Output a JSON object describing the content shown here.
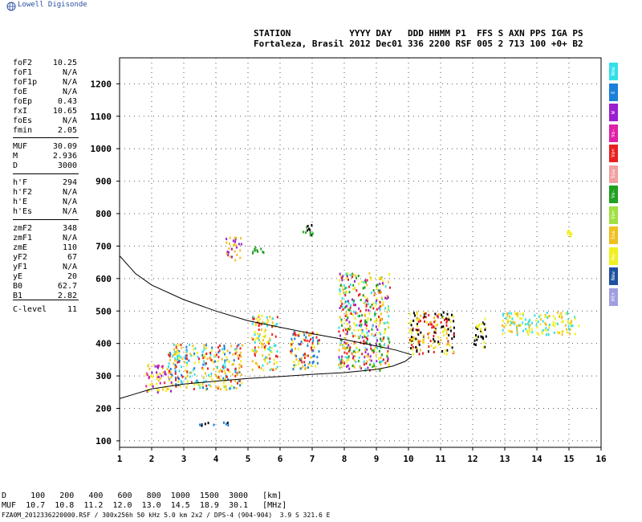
{
  "app": {
    "logo_text": "Lowell Digisonde"
  },
  "header": {
    "line1": "STATION           YYYY DAY   DDD HHMM P1  FFS S AXN PPS IGA PS",
    "line2": "Fortaleza, Brasil 2012 Dec01 336 2200 RSF 005 2 713 100 +0+ B2"
  },
  "params": [
    {
      "k": "foF2",
      "v": "10.25"
    },
    {
      "k": "foF1",
      "v": "N/A"
    },
    {
      "k": "foF1p",
      "v": "N/A"
    },
    {
      "k": "foE",
      "v": "N/A"
    },
    {
      "k": "foEp",
      "v": "0.43"
    },
    {
      "k": "fxI",
      "v": "10.65"
    },
    {
      "k": "foEs",
      "v": "N/A"
    },
    {
      "k": "fmin",
      "v": "2.05"
    },
    {
      "k": "MUF",
      "v": "30.09"
    },
    {
      "k": "M",
      "v": "2.936"
    },
    {
      "k": "D",
      "v": "3000"
    },
    {
      "k": "h'F",
      "v": "294"
    },
    {
      "k": "h'F2",
      "v": "N/A"
    },
    {
      "k": "h'E",
      "v": "N/A"
    },
    {
      "k": "h'Es",
      "v": "N/A"
    },
    {
      "k": "zmF2",
      "v": "348"
    },
    {
      "k": "zmF1",
      "v": "N/A"
    },
    {
      "k": "zmE",
      "v": "110"
    },
    {
      "k": "yF2",
      "v": "67"
    },
    {
      "k": "yF1",
      "v": "N/A"
    },
    {
      "k": "yE",
      "v": "20"
    },
    {
      "k": "B0",
      "v": "62.7"
    },
    {
      "k": "B1",
      "v": "2.82"
    },
    {
      "k": "C-level",
      "v": "11"
    }
  ],
  "legend": [
    {
      "label": "Nne",
      "color": "#33e0e8"
    },
    {
      "label": "E",
      "color": "#1a7fd8"
    },
    {
      "label": "W",
      "color": "#9a1fd0"
    },
    {
      "label": "Vo-",
      "color": "#e020a8"
    },
    {
      "label": "Vo+",
      "color": "#e82020"
    },
    {
      "label": "Ssw",
      "color": "#f0a0a0"
    },
    {
      "label": "Vo-",
      "color": "#20a020"
    },
    {
      "label": "Vo+",
      "color": "#a0e040"
    },
    {
      "label": "Sse",
      "color": "#f0c020"
    },
    {
      "label": "Nw-",
      "color": "#f0f020"
    },
    {
      "label": "New",
      "color": "#2050a0"
    },
    {
      "label": "Ht+",
      "color": "#a0a0e0"
    }
  ],
  "footer": {
    "line1": "D     100   200   400   600   800  1000  1500  3000   [km]",
    "line2": "MUF  10.7  10.8  11.2  12.0  13.0  14.5  18.9  30.1   [MHz]",
    "line3": "FZA0M_2012336220000.RSF / 300x256h 50 kHz 5.0 km 2x2 / DPS-4 (904-904)  3.9 S 321.6 E"
  },
  "chart_data": {
    "type": "scatter",
    "xlim": [
      1,
      16
    ],
    "ylim": [
      80,
      1280
    ],
    "x_ticks": [
      1,
      2,
      3,
      4,
      5,
      6,
      7,
      8,
      9,
      10,
      11,
      12,
      13,
      14,
      15,
      16
    ],
    "y_ticks": [
      100,
      200,
      300,
      400,
      500,
      600,
      700,
      800,
      900,
      1000,
      1100,
      1200
    ],
    "grid": true,
    "series": [
      {
        "role": "profile-curve",
        "points": [
          [
            1,
            670
          ],
          [
            1.5,
            615
          ],
          [
            2,
            580
          ],
          [
            3,
            535
          ],
          [
            4,
            500
          ],
          [
            5,
            470
          ],
          [
            6,
            450
          ],
          [
            7,
            430
          ],
          [
            8,
            412
          ],
          [
            9,
            392
          ],
          [
            9.6,
            380
          ],
          [
            10.1,
            365
          ]
        ]
      },
      {
        "role": "trace-curve",
        "points": [
          [
            1,
            230
          ],
          [
            1.5,
            245
          ],
          [
            2,
            260
          ],
          [
            3,
            275
          ],
          [
            4,
            284
          ],
          [
            5,
            292
          ],
          [
            6,
            298
          ],
          [
            7,
            305
          ],
          [
            8,
            310
          ],
          [
            9,
            320
          ],
          [
            9.5,
            330
          ],
          [
            9.9,
            345
          ],
          [
            10.1,
            360
          ]
        ]
      }
    ],
    "echo_clusters": [
      {
        "x": [
          1.8,
          2.6
        ],
        "y": [
          250,
          340
        ],
        "colors": [
          "#f0c020",
          "#e020a8",
          "#f0f020",
          "#9a1fd0"
        ]
      },
      {
        "x": [
          2.5,
          4.8
        ],
        "y": [
          260,
          400
        ],
        "colors": [
          "#f0c020",
          "#1a7fd8",
          "#33e0e8",
          "#f0f020",
          "#e82020"
        ]
      },
      {
        "x": [
          5.1,
          5.9
        ],
        "y": [
          320,
          490
        ],
        "colors": [
          "#f0f020",
          "#f0c020",
          "#33e0e8",
          "#e82020"
        ]
      },
      {
        "x": [
          6.3,
          7.2
        ],
        "y": [
          320,
          440
        ],
        "colors": [
          "#f0c020",
          "#e82020",
          "#f0f020",
          "#1a7fd8"
        ]
      },
      {
        "x": [
          7.8,
          9.4
        ],
        "y": [
          320,
          620
        ],
        "colors": [
          "#f0f020",
          "#f0c020",
          "#33e0e8",
          "#e82020",
          "#20a020",
          "#9a1fd0"
        ]
      },
      {
        "x": [
          10,
          11.4
        ],
        "y": [
          370,
          500
        ],
        "colors": [
          "#f0c020",
          "#e82020",
          "#f0f020",
          "#000000"
        ]
      },
      {
        "x": [
          12,
          12.4
        ],
        "y": [
          390,
          480
        ],
        "colors": [
          "#f0f020",
          "#000000"
        ]
      },
      {
        "x": [
          12.9,
          15.3
        ],
        "y": [
          430,
          500
        ],
        "colors": [
          "#f0f020",
          "#f0c020",
          "#33e0e8"
        ]
      },
      {
        "x": [
          4.3,
          4.8
        ],
        "y": [
          660,
          730
        ],
        "colors": [
          "#9a1fd0",
          "#f0c020"
        ]
      },
      {
        "x": [
          5.1,
          5.5
        ],
        "y": [
          680,
          700
        ],
        "colors": [
          "#20a020"
        ]
      },
      {
        "x": [
          6.7,
          7.0
        ],
        "y": [
          720,
          770
        ],
        "colors": [
          "#20a020",
          "#000000"
        ]
      },
      {
        "x": [
          3.4,
          4.6
        ],
        "y": [
          150,
          160
        ],
        "colors": [
          "#1a7fd8",
          "#000000"
        ]
      },
      {
        "x": [
          14.9,
          15.1
        ],
        "y": [
          720,
          760
        ],
        "colors": [
          "#f0f020"
        ]
      }
    ]
  }
}
